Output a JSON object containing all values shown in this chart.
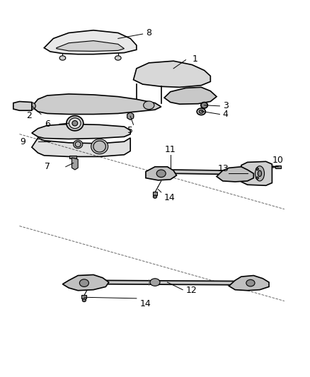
{
  "title": "",
  "background_color": "#ffffff",
  "fig_width": 4.38,
  "fig_height": 5.33,
  "dpi": 100,
  "line_color": "#000000",
  "label_fontsize": 9,
  "label_color": "#000000"
}
